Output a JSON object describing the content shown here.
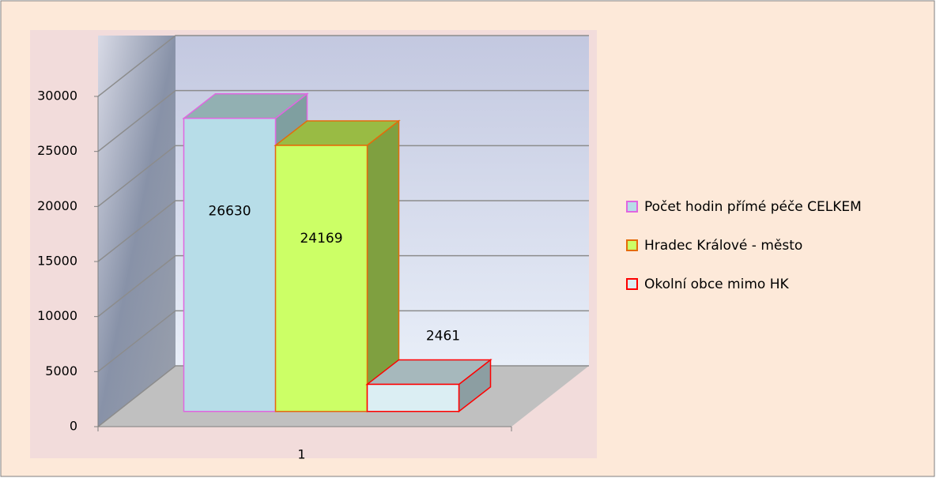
{
  "chart_data": {
    "type": "bar3d",
    "categories": [
      "1"
    ],
    "series": [
      {
        "name": "Počet hodin přímé péče CELKEM",
        "color": "#b7dde8",
        "values": [
          26630
        ]
      },
      {
        "name": "Hradec Králové - město",
        "color": "#ccff66",
        "values": [
          24169
        ]
      },
      {
        "name": "Okolní obce mimo HK",
        "color": "#dbeef3",
        "values": [
          2461
        ]
      }
    ],
    "ylim": [
      0,
      30000
    ],
    "yticks": [
      0,
      5000,
      10000,
      15000,
      20000,
      25000,
      30000
    ],
    "grid": true,
    "legend": "right"
  }
}
